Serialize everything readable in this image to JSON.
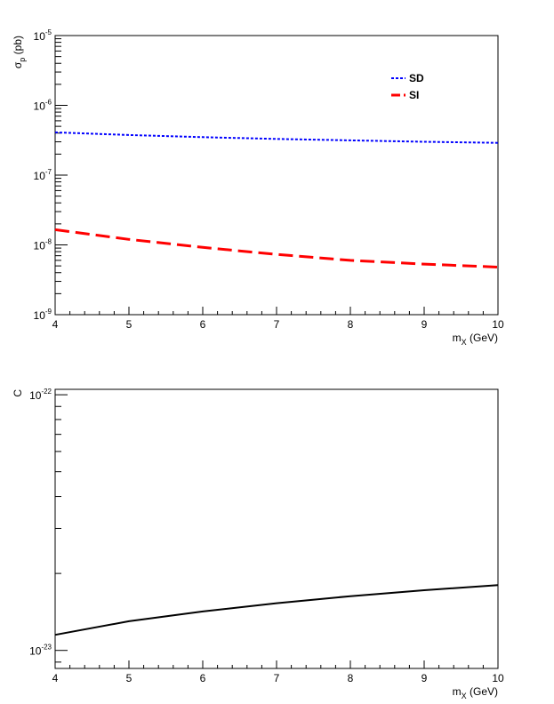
{
  "chart_data": [
    {
      "type": "line",
      "title": "",
      "xlabel": "m_X (GeV)",
      "ylabel": "σ_p (pb)",
      "xlim": [
        4,
        10
      ],
      "ylim": [
        1e-09,
        1e-05
      ],
      "yscale": "log",
      "grid": false,
      "legend_position": "top-right",
      "xticks": [
        4,
        5,
        6,
        7,
        8,
        9,
        10
      ],
      "yticks": [
        {
          "mantissa": "10",
          "exponent": "-9",
          "value": 1e-09
        },
        {
          "mantissa": "10",
          "exponent": "-8",
          "value": 1e-08
        },
        {
          "mantissa": "10",
          "exponent": "-7",
          "value": 1e-07
        },
        {
          "mantissa": "10",
          "exponent": "-6",
          "value": 1e-06
        },
        {
          "mantissa": "10",
          "exponent": "-5",
          "value": 1e-05
        }
      ],
      "series": [
        {
          "name": "SD",
          "color": "#0000ff",
          "style": "dotted",
          "x": [
            4,
            5,
            6,
            7,
            8,
            9,
            10
          ],
          "y": [
            4.1e-07,
            3.75e-07,
            3.5e-07,
            3.3e-07,
            3.15e-07,
            3e-07,
            2.9e-07
          ]
        },
        {
          "name": "SI",
          "color": "#ff0000",
          "style": "dashed",
          "x": [
            4,
            5,
            6,
            7,
            8,
            9,
            10
          ],
          "y": [
            1.65e-08,
            1.2e-08,
            9.2e-09,
            7.3e-09,
            6e-09,
            5.3e-09,
            4.8e-09
          ]
        }
      ]
    },
    {
      "type": "line",
      "title": "",
      "xlabel": "m_X (GeV)",
      "ylabel": "C",
      "xlim": [
        4,
        10
      ],
      "ylim": [
        8.5e-24,
        1.05e-22
      ],
      "yscale": "log",
      "grid": false,
      "xticks": [
        4,
        5,
        6,
        7,
        8,
        9,
        10
      ],
      "yticks": [
        {
          "mantissa": "10",
          "exponent": "-23",
          "value": 1e-23
        },
        {
          "mantissa": "10",
          "exponent": "-22",
          "value": 1e-22
        }
      ],
      "series": [
        {
          "color": "#000000",
          "style": "solid",
          "x": [
            4,
            5,
            6,
            7,
            8,
            9,
            10
          ],
          "y": [
            1.15e-23,
            1.3e-23,
            1.42e-23,
            1.53e-23,
            1.63e-23,
            1.72e-23,
            1.8e-23
          ]
        }
      ]
    }
  ]
}
